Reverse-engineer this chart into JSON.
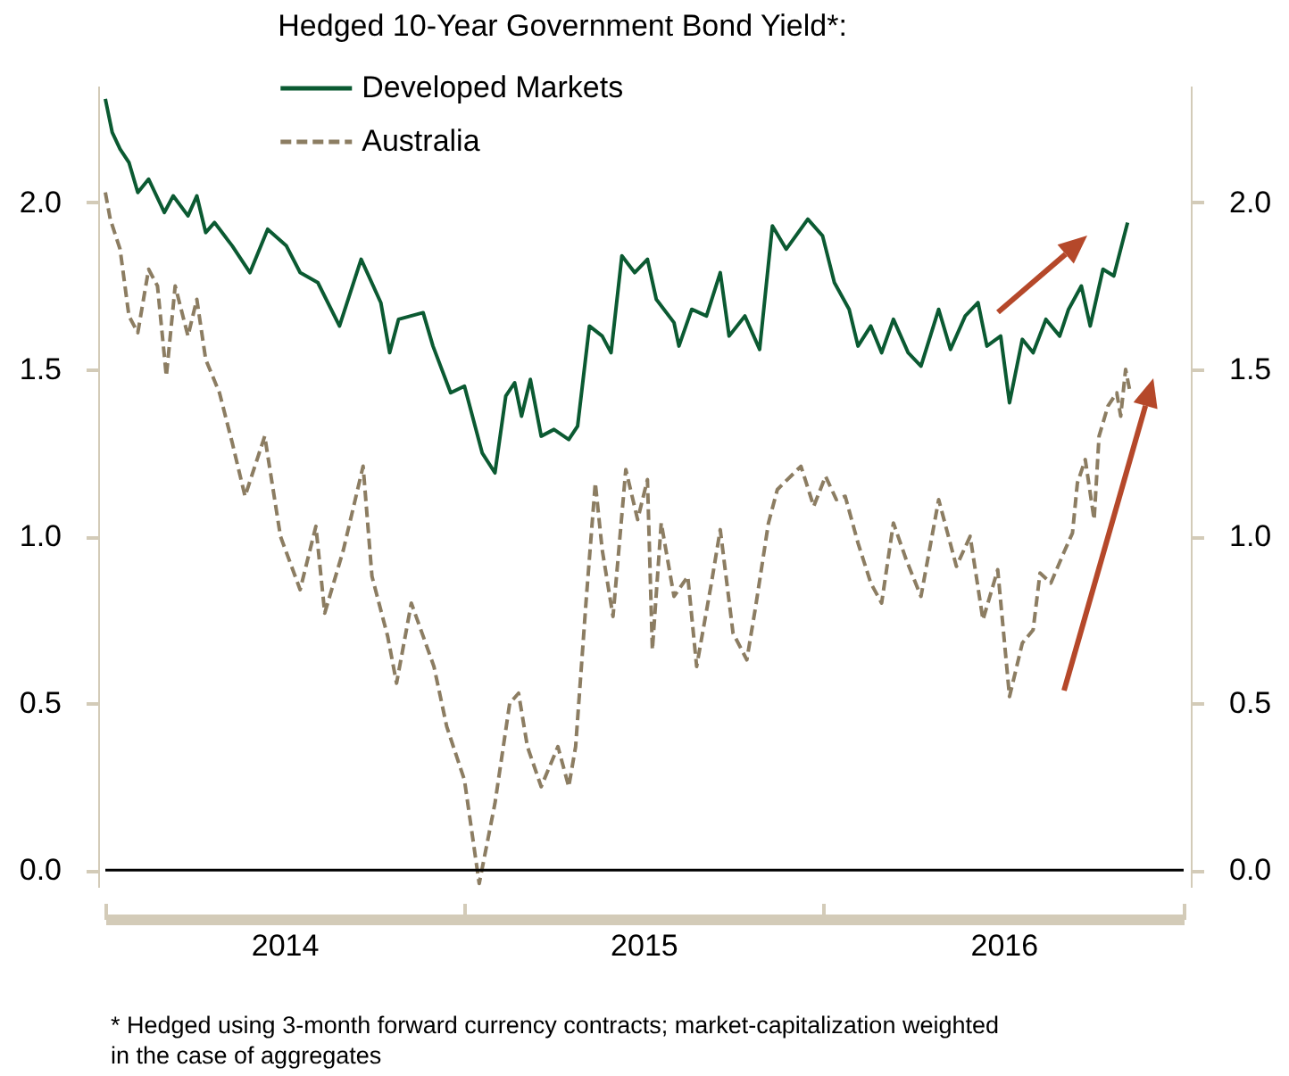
{
  "chart_data": {
    "type": "line",
    "title": "Hedged 10-Year Government Bond Yield*:",
    "annotations": [
      "* Hedged using 3-month forward currency contracts; market-capitalization weighted in the case of aggregates"
    ],
    "legend": "top",
    "xlim": [
      "2014-01-01",
      "2017-01-01"
    ],
    "xticks": [
      {
        "value": "2014-01-01",
        "label": null
      },
      {
        "value": "2014-07-02",
        "label": "2014"
      },
      {
        "value": "2015-01-01",
        "label": null
      },
      {
        "value": "2015-07-02",
        "label": "2015"
      },
      {
        "value": "2016-01-01",
        "label": null
      },
      {
        "value": "2016-07-02",
        "label": "2016"
      },
      {
        "value": "2017-01-01",
        "label": null
      }
    ],
    "ylim": [
      -0.05,
      2.35
    ],
    "yticks": [
      {
        "value": 0,
        "label": "0.0"
      },
      {
        "value": 0.5,
        "label": "0.5"
      },
      {
        "value": 1,
        "label": "1.0"
      },
      {
        "value": 1.5,
        "label": "1.5"
      },
      {
        "value": 2,
        "label": "2.0"
      }
    ],
    "y2lim": [
      -0.05,
      2.35
    ],
    "y2ticks": [
      {
        "value": 0,
        "label": "0.0"
      },
      {
        "value": 0.5,
        "label": "0.5"
      },
      {
        "value": 1,
        "label": "1.0"
      },
      {
        "value": 1.5,
        "label": "1.5"
      },
      {
        "value": 2,
        "label": "2.0"
      }
    ],
    "ref_lines": [
      {
        "axis": "y",
        "value": 0,
        "color": "#000000"
      }
    ],
    "series": [
      {
        "name": "Developed Markets",
        "color": "#0b5a32",
        "line_style": "solid",
        "x": [
          "2014-01-01",
          "2014-01-08",
          "2014-01-16",
          "2014-01-25",
          "2014-02-03",
          "2014-02-14",
          "2014-03-02",
          "2014-03-11",
          "2014-03-26",
          "2014-04-04",
          "2014-04-13",
          "2014-04-22",
          "2014-05-10",
          "2014-05-28",
          "2014-06-15",
          "2014-07-04",
          "2014-07-18",
          "2014-08-05",
          "2014-08-27",
          "2014-09-18",
          "2014-10-08",
          "2014-10-17",
          "2014-10-26",
          "2014-11-20",
          "2014-11-30",
          "2014-12-18",
          "2015-01-01",
          "2015-01-19",
          "2015-02-01",
          "2015-02-12",
          "2015-02-21",
          "2015-02-28",
          "2015-03-09",
          "2015-03-20",
          "2015-04-02",
          "2015-04-17",
          "2015-04-26",
          "2015-05-08",
          "2015-05-21",
          "2015-05-30",
          "2015-06-10",
          "2015-06-23",
          "2015-07-06",
          "2015-07-15",
          "2015-08-02",
          "2015-08-07",
          "2015-08-20",
          "2015-09-04",
          "2015-09-18",
          "2015-09-27",
          "2015-10-13",
          "2015-10-28",
          "2015-11-10",
          "2015-11-24",
          "2015-12-16",
          "2015-12-31",
          "2016-01-12",
          "2016-01-27",
          "2016-02-05",
          "2016-02-18",
          "2016-02-29",
          "2016-03-12",
          "2016-03-27",
          "2016-04-09",
          "2016-04-27",
          "2016-05-09",
          "2016-05-24",
          "2016-06-06",
          "2016-06-15",
          "2016-06-29",
          "2016-07-08",
          "2016-07-21",
          "2016-08-01",
          "2016-08-14",
          "2016-08-28",
          "2016-09-06",
          "2016-09-19",
          "2016-09-28",
          "2016-10-11",
          "2016-10-22",
          "2016-10-29",
          "2016-11-05"
        ],
        "values": [
          2.31,
          2.21,
          2.16,
          2.12,
          2.03,
          2.07,
          1.97,
          2.02,
          1.96,
          2.02,
          1.91,
          1.94,
          1.87,
          1.79,
          1.92,
          1.87,
          1.79,
          1.76,
          1.63,
          1.83,
          1.7,
          1.55,
          1.65,
          1.67,
          1.57,
          1.43,
          1.45,
          1.25,
          1.19,
          1.42,
          1.46,
          1.36,
          1.47,
          1.3,
          1.32,
          1.29,
          1.33,
          1.63,
          1.6,
          1.55,
          1.84,
          1.79,
          1.83,
          1.71,
          1.64,
          1.57,
          1.68,
          1.66,
          1.79,
          1.6,
          1.66,
          1.56,
          1.93,
          1.86,
          1.95,
          1.9,
          1.76,
          1.68,
          1.57,
          1.63,
          1.55,
          1.65,
          1.55,
          1.51,
          1.68,
          1.56,
          1.66,
          1.7,
          1.57,
          1.6,
          1.4,
          1.59,
          1.55,
          1.65,
          1.6,
          1.68,
          1.75,
          1.63,
          1.8,
          1.78,
          1.86,
          1.94
        ]
      },
      {
        "name": "Australia",
        "color": "#8c7d62",
        "line_style": "dashed",
        "x": [
          "2014-01-01",
          "2014-01-06",
          "2014-01-16",
          "2014-01-25",
          "2014-02-03",
          "2014-02-14",
          "2014-02-23",
          "2014-03-04",
          "2014-03-13",
          "2014-03-26",
          "2014-04-04",
          "2014-04-13",
          "2014-04-27",
          "2014-05-10",
          "2014-05-23",
          "2014-06-12",
          "2014-06-28",
          "2014-07-18",
          "2014-08-03",
          "2014-08-12",
          "2014-08-31",
          "2014-09-20",
          "2014-09-29",
          "2014-10-15",
          "2014-10-24",
          "2014-11-08",
          "2014-12-01",
          "2014-12-14",
          "2015-01-01",
          "2015-01-16",
          "2015-02-01",
          "2015-02-16",
          "2015-02-25",
          "2015-03-06",
          "2015-03-20",
          "2015-04-06",
          "2015-04-17",
          "2015-04-24",
          "2015-05-05",
          "2015-05-14",
          "2015-05-21",
          "2015-06-01",
          "2015-06-14",
          "2015-06-26",
          "2015-07-06",
          "2015-07-11",
          "2015-07-20",
          "2015-08-02",
          "2015-08-16",
          "2015-08-25",
          "2015-09-09",
          "2015-09-18",
          "2015-10-01",
          "2015-10-15",
          "2015-10-24",
          "2015-11-06",
          "2015-11-15",
          "2015-12-09",
          "2015-12-22",
          "2016-01-03",
          "2016-01-14",
          "2016-01-23",
          "2016-02-05",
          "2016-02-18",
          "2016-02-29",
          "2016-03-12",
          "2016-03-25",
          "2016-04-09",
          "2016-04-27",
          "2016-05-15",
          "2016-05-29",
          "2016-06-11",
          "2016-06-26",
          "2016-07-08",
          "2016-07-21",
          "2016-08-01",
          "2016-08-08",
          "2016-08-19",
          "2016-09-01",
          "2016-09-10",
          "2016-09-15",
          "2016-09-23",
          "2016-10-02",
          "2016-10-07",
          "2016-10-16",
          "2016-10-25",
          "2016-10-29",
          "2016-11-03",
          "2016-11-07"
        ],
        "values": [
          2.03,
          1.95,
          1.86,
          1.66,
          1.61,
          1.8,
          1.75,
          1.48,
          1.75,
          1.6,
          1.71,
          1.53,
          1.43,
          1.28,
          1.12,
          1.3,
          1.0,
          0.84,
          1.03,
          0.77,
          0.96,
          1.21,
          0.88,
          0.7,
          0.56,
          0.8,
          0.61,
          0.43,
          0.27,
          -0.04,
          0.2,
          0.5,
          0.53,
          0.37,
          0.25,
          0.37,
          0.25,
          0.37,
          0.82,
          1.16,
          0.96,
          0.76,
          1.2,
          1.05,
          1.17,
          0.66,
          1.04,
          0.82,
          0.88,
          0.61,
          0.86,
          1.02,
          0.71,
          0.63,
          0.79,
          1.04,
          1.14,
          1.21,
          1.09,
          1.18,
          1.11,
          1.12,
          0.98,
          0.86,
          0.8,
          1.04,
          0.93,
          0.82,
          1.11,
          0.91,
          1.0,
          0.75,
          0.9,
          0.52,
          0.68,
          0.72,
          0.89,
          0.86,
          0.95,
          1.01,
          1.16,
          1.23,
          1.05,
          1.3,
          1.39,
          1.43,
          1.36,
          1.5,
          1.44
        ]
      }
    ]
  }
}
